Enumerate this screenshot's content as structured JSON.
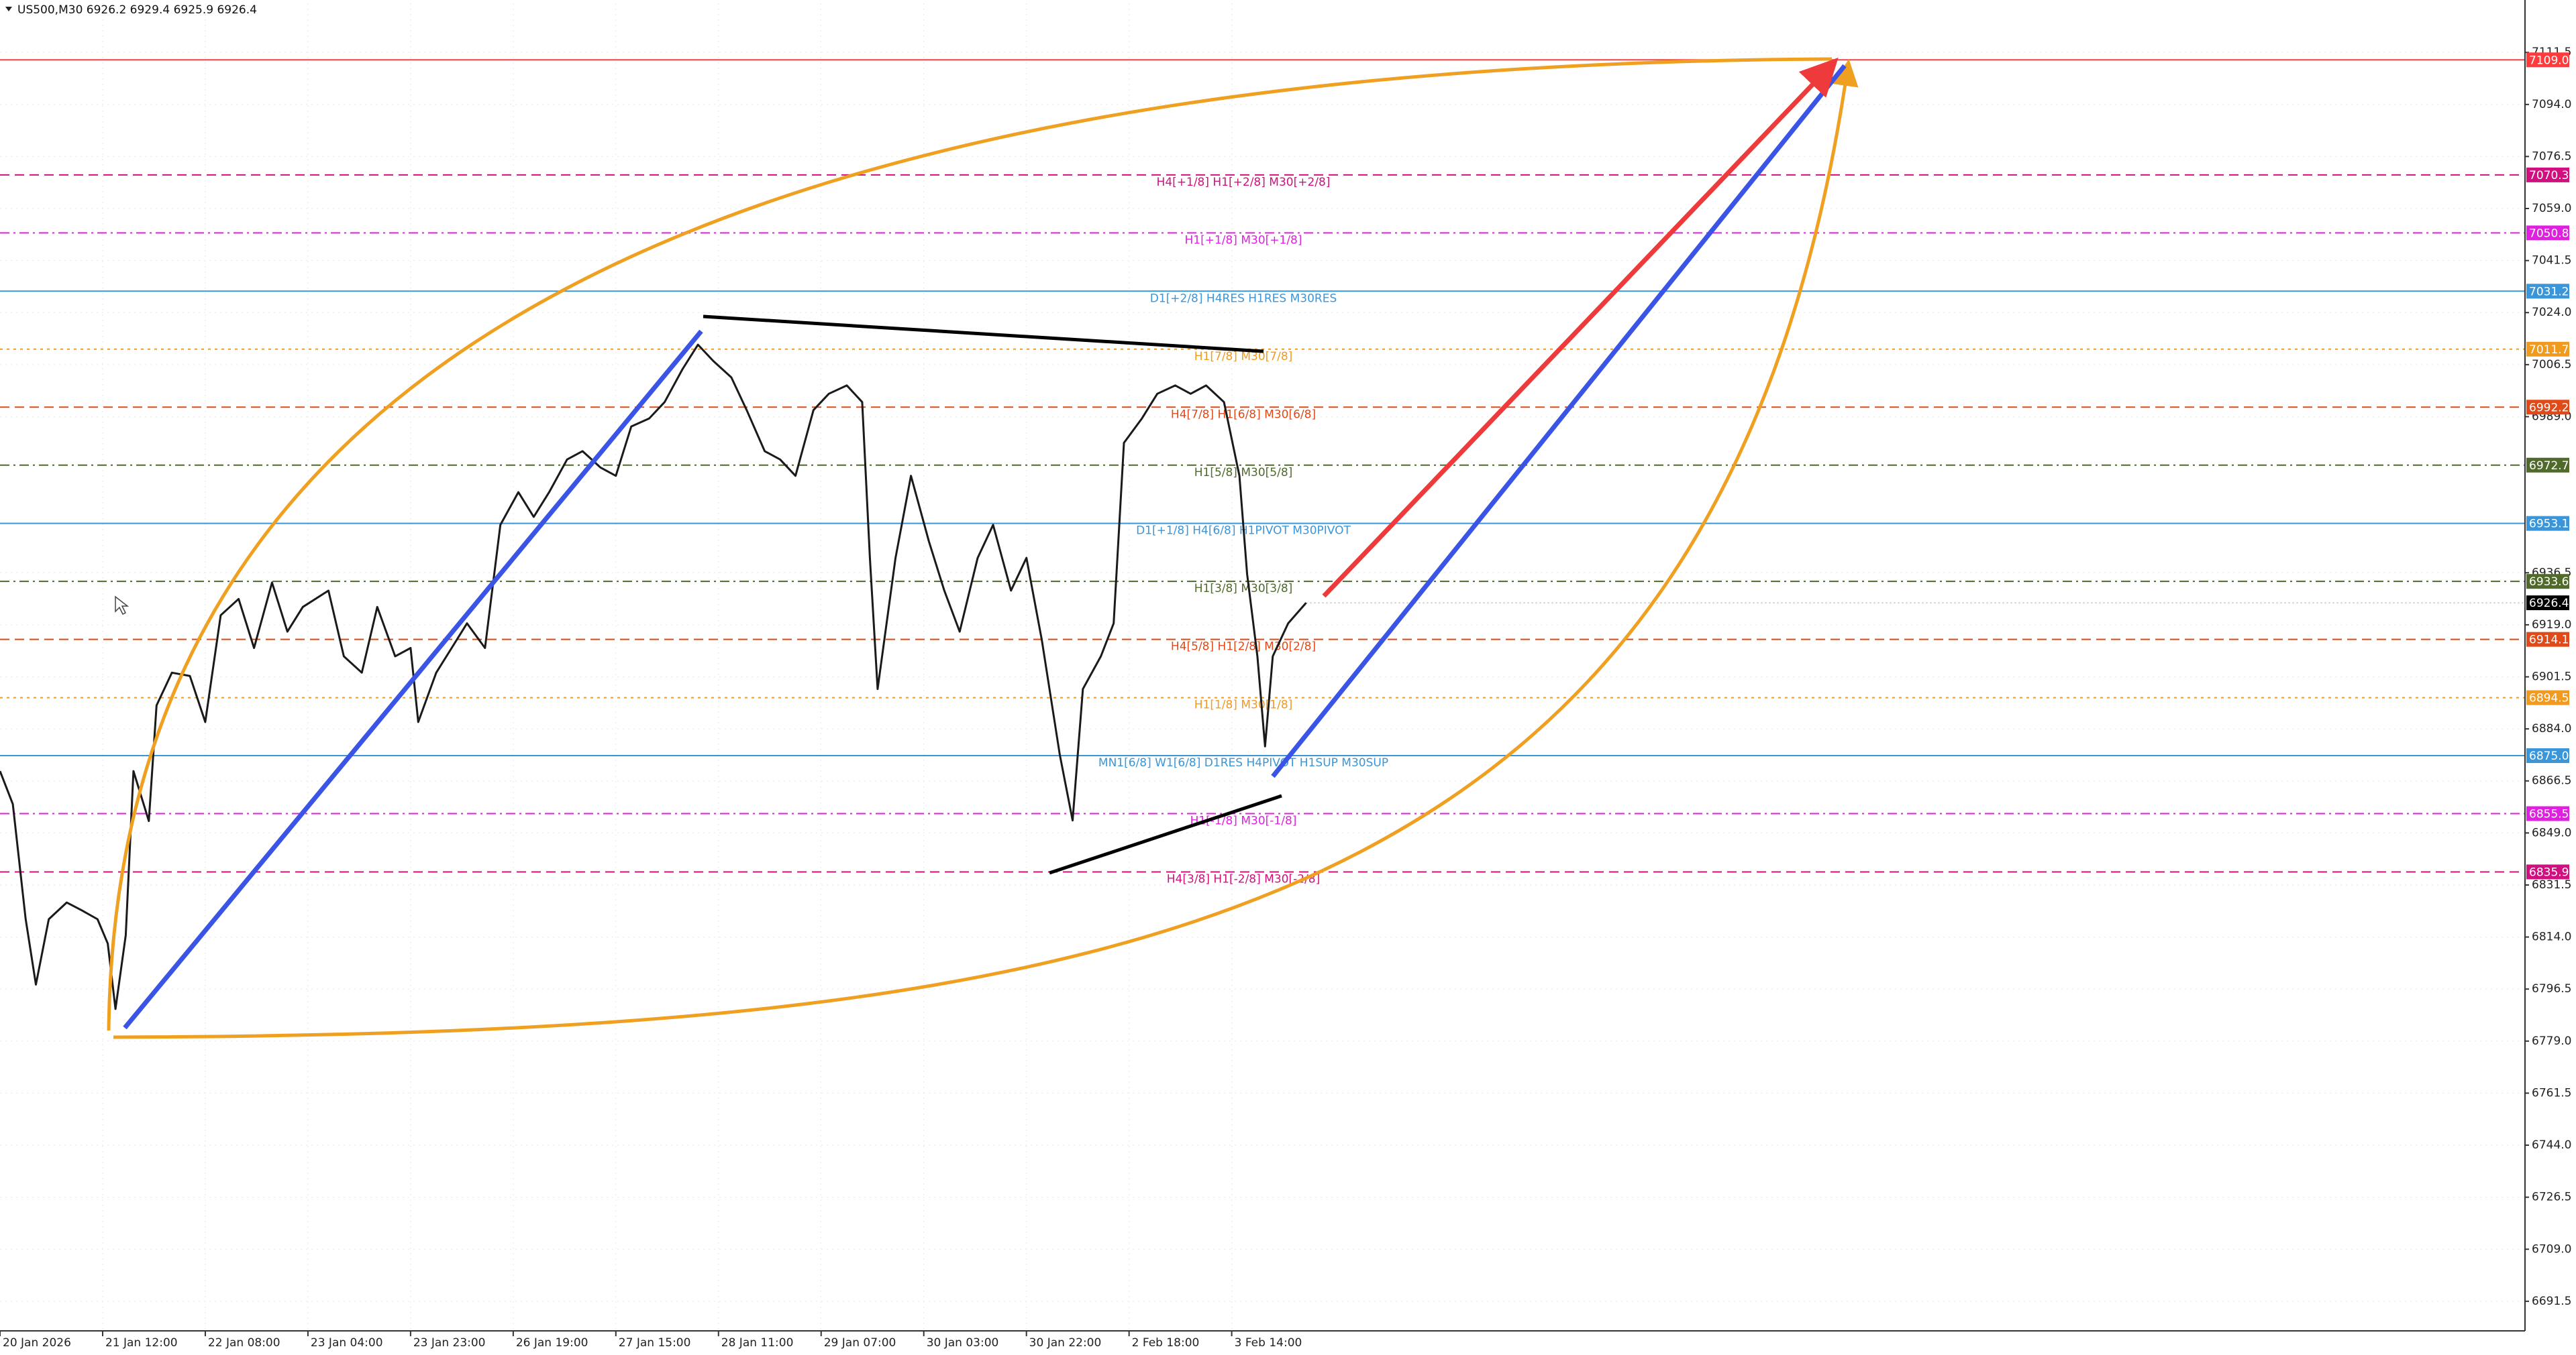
{
  "header": {
    "symbol_line": "US500,M30  6926.2 6929.4 6925.9 6926.4"
  },
  "chart_data": {
    "type": "line",
    "color": "#1a1a1a",
    "x": [
      0,
      5,
      10,
      14,
      19,
      26,
      32,
      38,
      42,
      45,
      49,
      52,
      58,
      61,
      67,
      74,
      80,
      86,
      93,
      99,
      106,
      112,
      118,
      128,
      134,
      141,
      147,
      154,
      160,
      163,
      170,
      176,
      182,
      189,
      195,
      202,
      208,
      214,
      221,
      227,
      234,
      240,
      246,
      253,
      259,
      266,
      272,
      278,
      285,
      291,
      298,
      304,
      310,
      317,
      323,
      330,
      336,
      339,
      342,
      349,
      355,
      362,
      368,
      374,
      381,
      387,
      394,
      400,
      406,
      413,
      418,
      422,
      429,
      434,
      438,
      445,
      451,
      458,
      464,
      470,
      477,
      483,
      486,
      490,
      493,
      496,
      502,
      509
    ],
    "values": [
      6869.8,
      6858.7,
      6820.1,
      6798.0,
      6820.0,
      6825.6,
      6822.9,
      6820.0,
      6811.8,
      6789.8,
      6814.6,
      6869.8,
      6853.0,
      6891.9,
      6902.9,
      6901.8,
      6886.3,
      6922.2,
      6927.7,
      6911.2,
      6933.2,
      6916.7,
      6925.0,
      6930.5,
      6908.4,
      6902.9,
      6925.0,
      6908.4,
      6911.2,
      6886.3,
      6902.9,
      6911.2,
      6919.5,
      6911.2,
      6952.6,
      6963.6,
      6955.3,
      6963.6,
      6974.6,
      6977.4,
      6971.9,
      6969.1,
      6985.7,
      6988.4,
      6993.9,
      7005.0,
      7013.2,
      7007.7,
      7002.2,
      6991.2,
      6977.4,
      6974.6,
      6969.1,
      6991.2,
      6996.7,
      6999.5,
      6993.9,
      6941.5,
      6897.4,
      6941.5,
      6969.1,
      6947.0,
      6930.5,
      6916.7,
      6941.5,
      6952.6,
      6930.5,
      6941.5,
      6913.9,
      6875.3,
      6853.2,
      6897.4,
      6908.4,
      6919.5,
      6980.2,
      6988.4,
      6996.7,
      6999.5,
      6996.7,
      6999.5,
      6993.9,
      6969.1,
      6936.0,
      6908.4,
      6878.1,
      6908.4,
      6919.5,
      6926.4
    ],
    "xlim": [
      0,
      984
    ],
    "xticks": [
      {
        "value": 0,
        "label": "20 Jan 2026"
      },
      {
        "value": 40,
        "label": "21 Jan 12:00"
      },
      {
        "value": 80,
        "label": "22 Jan 08:00"
      },
      {
        "value": 120,
        "label": "23 Jan 04:00"
      },
      {
        "value": 160,
        "label": "23 Jan 23:00"
      },
      {
        "value": 200,
        "label": "26 Jan 19:00"
      },
      {
        "value": 240,
        "label": "27 Jan 15:00"
      },
      {
        "value": 280,
        "label": "28 Jan 11:00"
      },
      {
        "value": 320,
        "label": "29 Jan 07:00"
      },
      {
        "value": 360,
        "label": "30 Jan 03:00"
      },
      {
        "value": 400,
        "label": "30 Jan 22:00"
      },
      {
        "value": 440,
        "label": "2 Feb 18:00"
      },
      {
        "value": 480,
        "label": "3 Feb 14:00"
      }
    ],
    "ylim": [
      6682,
      7128
    ],
    "yticks": [
      7111.5,
      {
        "value": 7094,
        "label": "7094.0"
      },
      7076.5,
      {
        "value": 7059,
        "label": "7059.0"
      },
      7041.5,
      {
        "value": 7024,
        "label": "7024.0"
      },
      7006.5,
      {
        "value": 6989,
        "label": "6989.0"
      },
      6936.5,
      {
        "value": 6919,
        "label": "6919.0"
      },
      6901.5,
      {
        "value": 6884,
        "label": "6884.0"
      },
      6866.5,
      {
        "value": 6849,
        "label": "6849.0"
      },
      6831.5,
      {
        "value": 6814,
        "label": "6814.0"
      },
      6796.5,
      {
        "value": 6779,
        "label": "6779.0"
      },
      6761.5,
      {
        "value": 6744,
        "label": "6744.0"
      },
      6726.5,
      {
        "value": 6709,
        "label": "6709.0"
      },
      6691.5
    ],
    "grid": true,
    "levels": [
      {
        "price": 7109,
        "price_label": "7109.0",
        "color": "#ff3b3b",
        "dash": "solid"
      },
      {
        "price": 7070.3,
        "text": "H4[+1/8] H1[+2/8] M30[+2/8]",
        "color": "#d0107f",
        "dash": "dashed"
      },
      {
        "price": 7050.8,
        "text": "H1[+1/8] M30[+1/8]",
        "color": "#e020e0",
        "dash": "dash-dot"
      },
      {
        "price": 7031.2,
        "text": "D1[+2/8] H4RES H1RES M30RES",
        "color": "#3a96d8",
        "dash": "solid"
      },
      {
        "price": 7011.7,
        "text": "H1[7/8] M30[7/8]",
        "color": "#f09a20",
        "dash": "dotted"
      },
      {
        "price": 6992.2,
        "text": "H4[7/8] H1[6/8] M30[6/8]",
        "color": "#e04a18",
        "dash": "dashed"
      },
      {
        "price": 6972.7,
        "text": "H1[5/8] M30[5/8]",
        "color": "#4f6a2a",
        "dash": "dash-dot"
      },
      {
        "price": 6953.1,
        "text": "D1[+1/8] H4[6/8] H1PIVOT M30PIVOT",
        "color": "#3a96d8",
        "dash": "solid"
      },
      {
        "price": 6933.6,
        "text": "H1[3/8] M30[3/8]",
        "color": "#4f6a2a",
        "dash": "dash-dot"
      },
      {
        "price": 6914.1,
        "text": "H4[5/8] H1[2/8] M30[2/8]",
        "color": "#e04a18",
        "dash": "dashed"
      },
      {
        "price": 6894.5,
        "text": "H1[1/8] M30[1/8]",
        "color": "#f09a20",
        "dash": "dotted"
      },
      {
        "price": 6875,
        "price_label": "6875.0",
        "text": "MN1[6/8] W1[6/8] D1RES H4PIVOT H1SUP M30SUP",
        "color": "#3a96d8",
        "dash": "solid"
      },
      {
        "price": 6855.5,
        "text": "H1[-1/8] M30[-1/8]",
        "color": "#e020e0",
        "dash": "dash-dot"
      },
      {
        "price": 6835.9,
        "text": "H4[3/8] H1[-2/8] M30[-2/8]",
        "color": "#d0107f",
        "dash": "dashed"
      }
    ],
    "current_price": {
      "price": 6926.4,
      "color": "#000000"
    }
  }
}
